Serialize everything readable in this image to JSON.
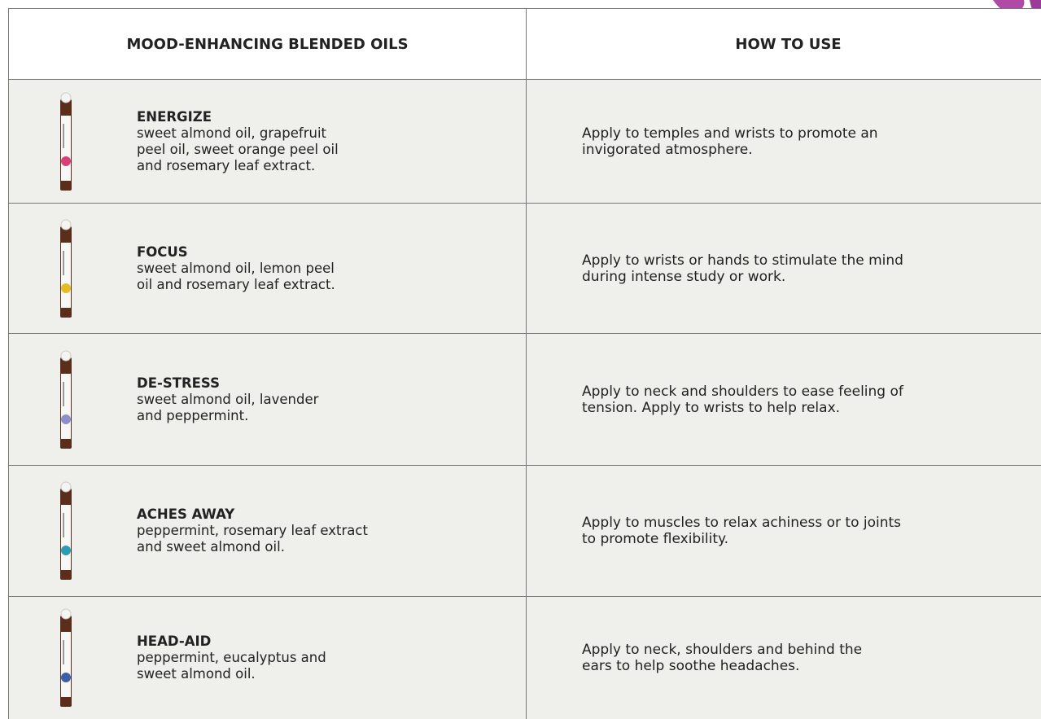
{
  "header": {
    "col1": "MOOD-ENHANCING BLENDED OILS",
    "col2": "HOW TO USE"
  },
  "rows": [
    {
      "name": "ENERGIZE",
      "ingredients": [
        "sweet almond oil, grapefruit",
        "peel oil, sweet orange peel oil",
        "and rosemary leaf extract."
      ],
      "use": [
        "Apply to temples and wrists to promote an",
        "invigorated atmosphere."
      ]
    },
    {
      "name": "FOCUS",
      "ingredients": [
        "sweet almond oil, lemon peel",
        "oil and rosemary leaf extract."
      ],
      "use": [
        "Apply to wrists or hands to stimulate the mind",
        "during intense study or work."
      ]
    },
    {
      "name": "DE-STRESS",
      "ingredients": [
        "sweet almond oil, lavender",
        "and peppermint."
      ],
      "use": [
        "Apply to neck and shoulders to ease feeling of",
        "tension. Apply to wrists to help relax."
      ]
    },
    {
      "name": "ACHES AWAY",
      "ingredients": [
        "peppermint, rosemary leaf extract",
        "and sweet almond oil."
      ],
      "use": [
        "Apply to muscles to relax achiness or to joints",
        "to promote flexibility."
      ]
    },
    {
      "name": "HEAD-AID",
      "ingredients": [
        "peppermint, eucalyptus and",
        "sweet almond oil."
      ],
      "use": [
        "Apply to neck, shoulders and behind the",
        "ears to help soothe headaches."
      ]
    }
  ]
}
